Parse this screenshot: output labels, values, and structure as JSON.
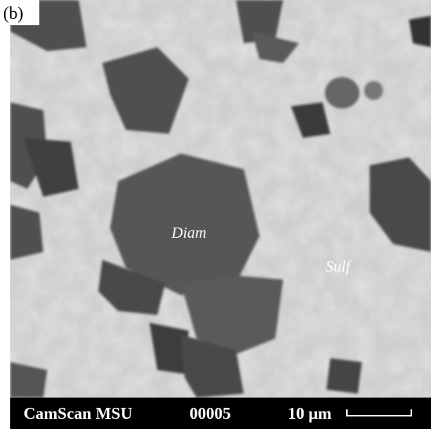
{
  "panel_label": "(b)",
  "annotations": [
    "Diam",
    "Sulf"
  ],
  "footer": {
    "instrument": "CamScan MSU",
    "image_number": "00005",
    "scale": "10 μm"
  }
}
